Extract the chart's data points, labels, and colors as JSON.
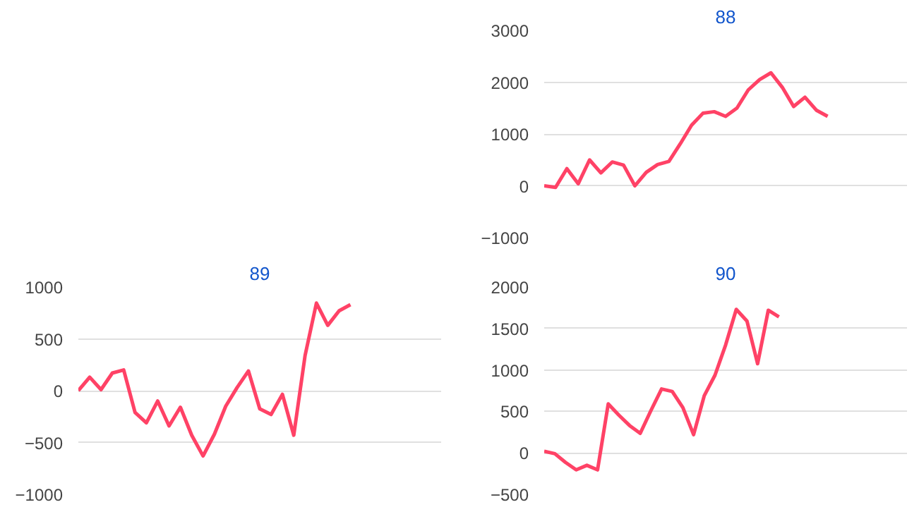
{
  "chart_data": [
    {
      "type": "line",
      "title": "88",
      "categories": [
        null,
        null,
        null,
        null,
        null,
        null,
        null,
        null,
        null,
        null,
        null,
        null,
        null,
        null,
        null,
        null,
        null,
        null,
        null,
        null,
        null,
        null,
        null,
        null,
        null,
        null,
        null,
        null,
        null,
        null,
        null,
        null,
        null
      ],
      "series": [
        {
          "color": "#ff4266",
          "values": [
            0,
            -30,
            330,
            40,
            500,
            250,
            460,
            400,
            0,
            260,
            410,
            470,
            810,
            1170,
            1400,
            1430,
            1340,
            1500,
            1850,
            2050,
            2180,
            1900,
            1530,
            1710,
            1460,
            1340,
            null,
            null,
            null,
            null,
            null,
            null,
            null
          ]
        }
      ],
      "ylim": [
        -1000,
        3000
      ],
      "yticks": [
        -1000,
        0,
        1000,
        2000,
        3000
      ],
      "grid": "y",
      "tick_labels": "y",
      "marker": "none",
      "line_style": "solid"
    },
    {
      "type": "line",
      "title": "89",
      "categories": [
        null,
        null,
        null,
        null,
        null,
        null,
        null,
        null,
        null,
        null,
        null,
        null,
        null,
        null,
        null,
        null,
        null,
        null,
        null,
        null,
        null,
        null,
        null,
        null,
        null,
        null,
        null,
        null,
        null,
        null,
        null,
        null,
        null
      ],
      "series": [
        {
          "color": "#ff4266",
          "values": [
            0,
            130,
            10,
            170,
            200,
            -210,
            -310,
            -100,
            -340,
            -160,
            -430,
            -630,
            -420,
            -150,
            30,
            190,
            -175,
            -230,
            -35,
            -430,
            340,
            845,
            630,
            770,
            830,
            null,
            null,
            null,
            null,
            null,
            null,
            null,
            null
          ]
        }
      ],
      "ylim": [
        -1000,
        1000
      ],
      "yticks": [
        -1000,
        -500,
        0,
        500,
        1000
      ],
      "grid": "y",
      "tick_labels": "y",
      "marker": "none",
      "line_style": "solid"
    },
    {
      "type": "line",
      "title": "90",
      "categories": [
        null,
        null,
        null,
        null,
        null,
        null,
        null,
        null,
        null,
        null,
        null,
        null,
        null,
        null,
        null,
        null,
        null,
        null,
        null,
        null,
        null,
        null,
        null,
        null,
        null,
        null,
        null,
        null,
        null,
        null,
        null,
        null,
        null,
        null,
        null
      ],
      "series": [
        {
          "color": "#ff4266",
          "values": [
            20,
            -10,
            -115,
            -205,
            -150,
            -205,
            590,
            455,
            330,
            235,
            510,
            770,
            740,
            545,
            220,
            690,
            935,
            1300,
            1730,
            1590,
            1075,
            1720,
            1640,
            null,
            null,
            null,
            null,
            null,
            null,
            null,
            null,
            null,
            null,
            null,
            null
          ]
        }
      ],
      "ylim": [
        -500,
        2000
      ],
      "yticks": [
        -500,
        0,
        500,
        1000,
        1500,
        2000
      ],
      "grid": "y",
      "tick_labels": "y",
      "marker": "none",
      "line_style": "solid"
    }
  ]
}
